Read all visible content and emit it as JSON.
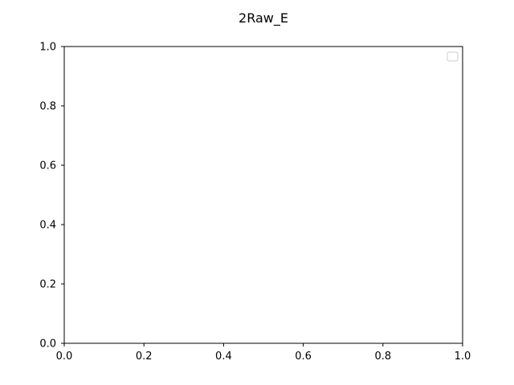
{
  "chart_data": {
    "type": "line",
    "title": "2Raw_E",
    "xlabel": "",
    "ylabel": "",
    "xlim": [
      0.0,
      1.0
    ],
    "ylim": [
      0.0,
      1.0
    ],
    "xticks": [
      "0.0",
      "0.2",
      "0.4",
      "0.6",
      "0.8",
      "1.0"
    ],
    "yticks": [
      "0.0",
      "0.2",
      "0.4",
      "0.6",
      "0.8",
      "1.0"
    ],
    "series": [],
    "grid": false,
    "legend": "top-right"
  }
}
